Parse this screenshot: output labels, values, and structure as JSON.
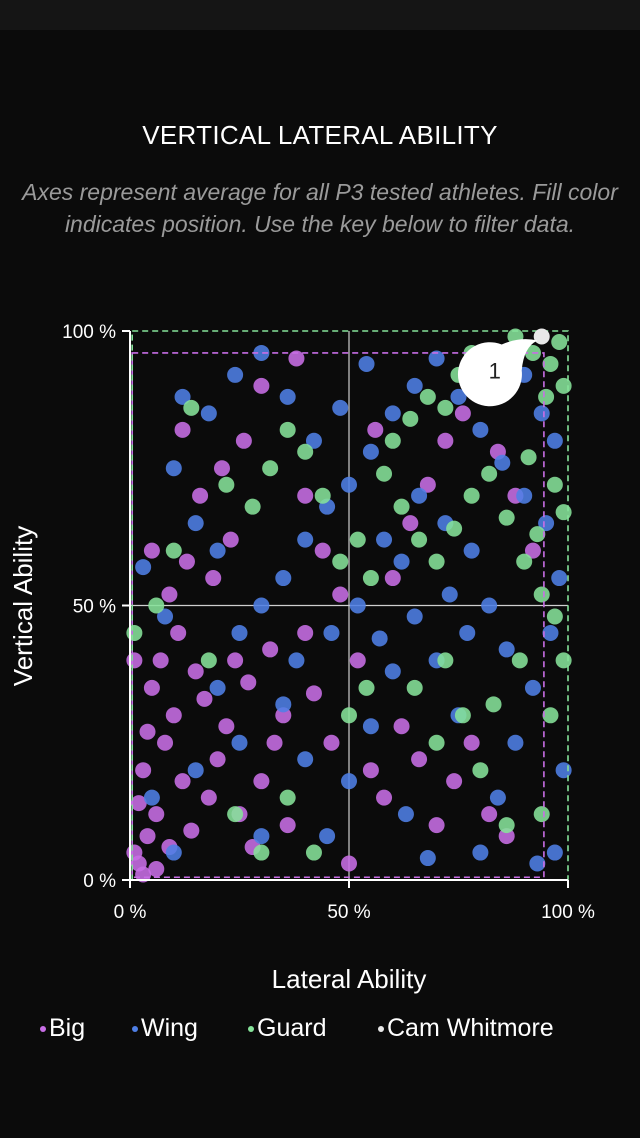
{
  "chart_data": {
    "type": "scatter",
    "title": "VERTICAL LATERAL ABILITY",
    "subtitle": "Axes represent average for all P3 tested athletes. Fill color indicates position. Use the key below to filter data.",
    "xlabel": "Lateral Ability",
    "ylabel": "Vertical Ability",
    "xlim": [
      0,
      100
    ],
    "ylim": [
      0,
      100
    ],
    "xticks": [
      "0 %",
      "50 %",
      "100 %"
    ],
    "yticks": [
      "0 %",
      "50 %",
      "100 %"
    ],
    "legend_position": "bottom",
    "highlight": {
      "name": "Cam Whitmore",
      "label": "1",
      "x": 94,
      "y": 99,
      "color": "#e8e8e8"
    },
    "reference_boxes": [
      {
        "series": "Big",
        "x": [
          0.5,
          94.5
        ],
        "y": [
          0.5,
          96
        ],
        "color": "#c86ee6"
      },
      {
        "series": "Guard",
        "x": [
          0.5,
          100
        ],
        "y": [
          0,
          100
        ],
        "color": "#86e39a"
      }
    ],
    "series": [
      {
        "name": "Big",
        "color": "#c86ee6",
        "points": [
          [
            2,
            3
          ],
          [
            4,
            8
          ],
          [
            6,
            12
          ],
          [
            3,
            20
          ],
          [
            8,
            25
          ],
          [
            10,
            30
          ],
          [
            5,
            35
          ],
          [
            12,
            18
          ],
          [
            14,
            9
          ],
          [
            18,
            15
          ],
          [
            20,
            22
          ],
          [
            22,
            28
          ],
          [
            25,
            12
          ],
          [
            28,
            6
          ],
          [
            30,
            18
          ],
          [
            33,
            25
          ],
          [
            35,
            30
          ],
          [
            7,
            40
          ],
          [
            11,
            45
          ],
          [
            15,
            38
          ],
          [
            17,
            33
          ],
          [
            24,
            40
          ],
          [
            27,
            36
          ],
          [
            32,
            42
          ],
          [
            9,
            52
          ],
          [
            13,
            58
          ],
          [
            19,
            55
          ],
          [
            23,
            62
          ],
          [
            5,
            60
          ],
          [
            16,
            70
          ],
          [
            21,
            75
          ],
          [
            26,
            80
          ],
          [
            12,
            82
          ],
          [
            30,
            90
          ],
          [
            38,
            95
          ],
          [
            40,
            70
          ],
          [
            44,
            60
          ],
          [
            48,
            52
          ],
          [
            52,
            40
          ],
          [
            55,
            20
          ],
          [
            58,
            15
          ],
          [
            62,
            28
          ],
          [
            66,
            22
          ],
          [
            70,
            10
          ],
          [
            74,
            18
          ],
          [
            78,
            25
          ],
          [
            82,
            12
          ],
          [
            86,
            8
          ],
          [
            60,
            55
          ],
          [
            64,
            65
          ],
          [
            68,
            72
          ],
          [
            72,
            80
          ],
          [
            76,
            85
          ],
          [
            80,
            90
          ],
          [
            84,
            78
          ],
          [
            88,
            70
          ],
          [
            92,
            60
          ],
          [
            56,
            82
          ],
          [
            42,
            34
          ],
          [
            46,
            25
          ],
          [
            50,
            3
          ],
          [
            36,
            10
          ],
          [
            3,
            1
          ],
          [
            1,
            5
          ],
          [
            6,
            2
          ],
          [
            9,
            6
          ],
          [
            2,
            14
          ],
          [
            4,
            27
          ],
          [
            1,
            40
          ],
          [
            40,
            45
          ]
        ]
      },
      {
        "name": "Wing",
        "color": "#4f7fe6",
        "points": [
          [
            5,
            15
          ],
          [
            10,
            5
          ],
          [
            15,
            20
          ],
          [
            20,
            35
          ],
          [
            25,
            45
          ],
          [
            30,
            50
          ],
          [
            35,
            55
          ],
          [
            40,
            62
          ],
          [
            45,
            68
          ],
          [
            50,
            72
          ],
          [
            55,
            78
          ],
          [
            60,
            85
          ],
          [
            65,
            90
          ],
          [
            70,
            95
          ],
          [
            75,
            88
          ],
          [
            80,
            82
          ],
          [
            85,
            76
          ],
          [
            90,
            70
          ],
          [
            95,
            65
          ],
          [
            98,
            55
          ],
          [
            96,
            45
          ],
          [
            92,
            35
          ],
          [
            88,
            25
          ],
          [
            84,
            15
          ],
          [
            80,
            5
          ],
          [
            75,
            30
          ],
          [
            70,
            40
          ],
          [
            65,
            48
          ],
          [
            60,
            38
          ],
          [
            55,
            28
          ],
          [
            50,
            18
          ],
          [
            45,
            8
          ],
          [
            40,
            22
          ],
          [
            35,
            32
          ],
          [
            30,
            8
          ],
          [
            25,
            25
          ],
          [
            20,
            60
          ],
          [
            15,
            65
          ],
          [
            10,
            75
          ],
          [
            12,
            88
          ],
          [
            18,
            85
          ],
          [
            24,
            92
          ],
          [
            30,
            96
          ],
          [
            36,
            88
          ],
          [
            42,
            80
          ],
          [
            48,
            86
          ],
          [
            54,
            94
          ],
          [
            58,
            62
          ],
          [
            62,
            58
          ],
          [
            66,
            70
          ],
          [
            72,
            65
          ],
          [
            78,
            60
          ],
          [
            82,
            50
          ],
          [
            86,
            42
          ],
          [
            90,
            92
          ],
          [
            94,
            85
          ],
          [
            97,
            80
          ],
          [
            99,
            20
          ],
          [
            97,
            5
          ],
          [
            93,
            3
          ],
          [
            3,
            57
          ],
          [
            8,
            48
          ],
          [
            38,
            40
          ],
          [
            46,
            45
          ],
          [
            52,
            50
          ],
          [
            57,
            44
          ],
          [
            63,
            12
          ],
          [
            68,
            4
          ],
          [
            73,
            52
          ],
          [
            77,
            45
          ]
        ]
      },
      {
        "name": "Guard",
        "color": "#86e39a",
        "points": [
          [
            98,
            98
          ],
          [
            96,
            94
          ],
          [
            99,
            90
          ],
          [
            95,
            88
          ],
          [
            92,
            96
          ],
          [
            88,
            99
          ],
          [
            85,
            94
          ],
          [
            82,
            90
          ],
          [
            78,
            96
          ],
          [
            75,
            92
          ],
          [
            72,
            86
          ],
          [
            68,
            88
          ],
          [
            64,
            84
          ],
          [
            60,
            80
          ],
          [
            58,
            74
          ],
          [
            62,
            68
          ],
          [
            66,
            62
          ],
          [
            70,
            58
          ],
          [
            74,
            64
          ],
          [
            78,
            70
          ],
          [
            82,
            74
          ],
          [
            86,
            66
          ],
          [
            90,
            58
          ],
          [
            94,
            52
          ],
          [
            97,
            48
          ],
          [
            99,
            40
          ],
          [
            96,
            30
          ],
          [
            94,
            12
          ],
          [
            86,
            10
          ],
          [
            80,
            20
          ],
          [
            76,
            30
          ],
          [
            72,
            40
          ],
          [
            55,
            55
          ],
          [
            52,
            62
          ],
          [
            48,
            58
          ],
          [
            44,
            70
          ],
          [
            40,
            78
          ],
          [
            36,
            82
          ],
          [
            32,
            75
          ],
          [
            28,
            68
          ],
          [
            22,
            72
          ],
          [
            14,
            86
          ],
          [
            10,
            60
          ],
          [
            6,
            50
          ],
          [
            1,
            45
          ],
          [
            18,
            40
          ],
          [
            24,
            12
          ],
          [
            30,
            5
          ],
          [
            36,
            15
          ],
          [
            42,
            5
          ],
          [
            50,
            30
          ],
          [
            54,
            35
          ],
          [
            65,
            35
          ],
          [
            70,
            25
          ],
          [
            83,
            32
          ],
          [
            89,
            40
          ],
          [
            91,
            77
          ],
          [
            99,
            67
          ],
          [
            97,
            72
          ],
          [
            93,
            63
          ]
        ]
      }
    ]
  },
  "legend": [
    {
      "label": "Big",
      "color": "#c86ee6"
    },
    {
      "label": "Wing",
      "color": "#4f7fe6"
    },
    {
      "label": "Guard",
      "color": "#86e39a"
    },
    {
      "label": "Cam Whitmore",
      "color": "#e8e8e8"
    }
  ]
}
